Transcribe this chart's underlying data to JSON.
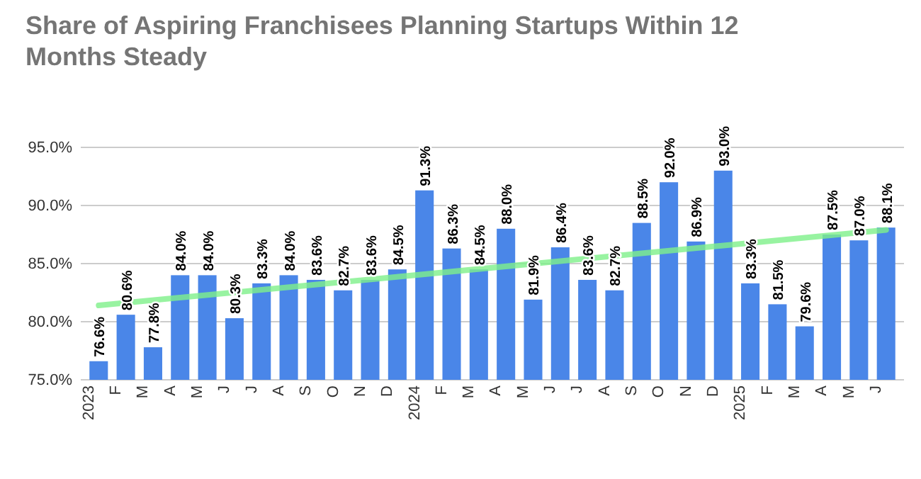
{
  "chart_data": {
    "type": "bar",
    "title": "Share of Aspiring Franchisees Planning Startups Within 12 Months Steady",
    "categories": [
      "2023",
      "F",
      "M",
      "A",
      "M",
      "J",
      "J",
      "A",
      "S",
      "O",
      "N",
      "D",
      "2024",
      "F",
      "M",
      "A",
      "M",
      "J",
      "J",
      "A",
      "S",
      "O",
      "N",
      "D",
      "2025",
      "F",
      "M",
      "A",
      "M",
      "J"
    ],
    "series": [
      {
        "color": "#4a86e8",
        "values": [
          76.6,
          80.6,
          77.8,
          84.0,
          84.0,
          80.3,
          83.3,
          84.0,
          83.6,
          82.7,
          83.6,
          84.5,
          91.3,
          86.3,
          84.5,
          88.0,
          81.9,
          86.4,
          83.6,
          82.7,
          88.5,
          92.0,
          86.9,
          93.0,
          83.3,
          81.5,
          79.6,
          87.5,
          87.0,
          88.1
        ],
        "value_labels": [
          "76.6%",
          "80.6%",
          "77.8%",
          "84.0%",
          "84.0%",
          "80.3%",
          "83.3%",
          "84.0%",
          "83.6%",
          "82.7%",
          "83.6%",
          "84.5%",
          "91.3%",
          "86.3%",
          "84.5%",
          "88.0%",
          "81.9%",
          "86.4%",
          "83.6%",
          "82.7%",
          "88.5%",
          "92.0%",
          "86.9%",
          "93.0%",
          "83.3%",
          "81.5%",
          "79.6%",
          "87.5%",
          "87.0%",
          "88.1%"
        ]
      },
      {
        "type": "line",
        "color": "#7ef08a",
        "values": [
          81.4,
          null,
          null,
          null,
          null,
          null,
          null,
          null,
          null,
          null,
          null,
          null,
          null,
          null,
          null,
          null,
          null,
          null,
          null,
          null,
          null,
          null,
          null,
          null,
          null,
          null,
          null,
          null,
          null,
          87.9
        ]
      }
    ],
    "ylim": [
      75,
      95
    ],
    "yticks": [
      {
        "value": 75,
        "label": "75.0%"
      },
      {
        "value": 80,
        "label": "80.0%"
      },
      {
        "value": 85,
        "label": "85.0%"
      },
      {
        "value": 90,
        "label": "90.0%"
      },
      {
        "value": 95,
        "label": "95.0%"
      }
    ],
    "grid": "y"
  }
}
